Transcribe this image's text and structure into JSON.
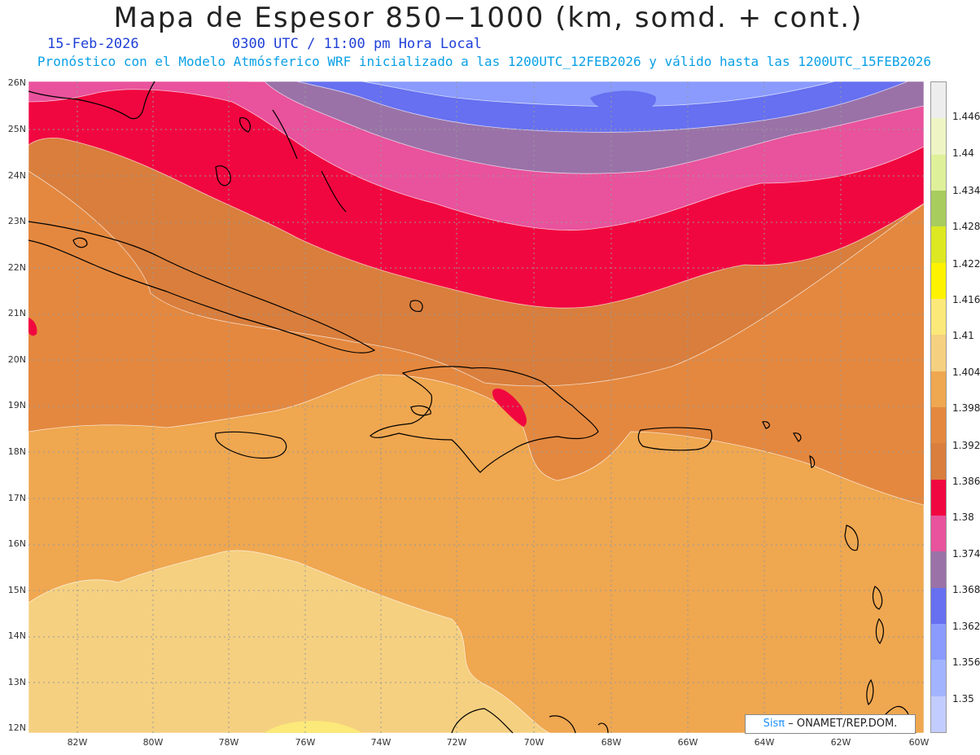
{
  "header": {
    "title": "Mapa de Espesor 850−1000 (km, somd. + cont.)",
    "date": "15-Feb-2026",
    "time": "0300 UTC / 11:00 pm Hora Local",
    "subtitle": "Pronóstico con el Modelo Atmósferico WRF inicializado a las 1200UTC_12FEB2026 y válido hasta las  1200UTC_15FEB2026"
  },
  "axes": {
    "lat_labels": [
      "26N",
      "25N",
      "24N",
      "23N",
      "22N",
      "21N",
      "20N",
      "19N",
      "18N",
      "17N",
      "16N",
      "15N",
      "14N",
      "13N",
      "12N"
    ],
    "lon_labels": [
      "82W",
      "80W",
      "78W",
      "76W",
      "74W",
      "72W",
      "70W",
      "68W",
      "66W",
      "64W",
      "62W",
      "60W"
    ],
    "lat_range": [
      12,
      26
    ],
    "lon_range": [
      -83.2,
      -60
    ]
  },
  "colorbar": {
    "labels": [
      "1.446",
      "1.44",
      "1.434",
      "1.428",
      "1.422",
      "1.416",
      "1.41",
      "1.404",
      "1.398",
      "1.392",
      "1.386",
      "1.38",
      "1.374",
      "1.368",
      "1.362",
      "1.356",
      "1.35"
    ],
    "colors": [
      "#ededed",
      "#eef4c3",
      "#dff09a",
      "#a8cc5e",
      "#dde822",
      "#fff200",
      "#fbe97a",
      "#f5d080",
      "#efa750",
      "#e4883f",
      "#d97e3c",
      "#f1073f",
      "#e9529c",
      "#9a72a8",
      "#6670f0",
      "#8a9bfd",
      "#a2b4fd",
      "#c3ccff"
    ]
  },
  "legend_colors": {
    "band_1362": "#6670f0",
    "band_1356": "#8a9bfd",
    "band_1368": "#9a72a8",
    "band_1374": "#e9529c",
    "band_1380": "#f1073f",
    "band_1386": "#d97e3c",
    "band_1392": "#e4883f",
    "band_1398": "#efa750",
    "band_1404": "#f5d080",
    "band_1410": "#fbe97a"
  },
  "credit": {
    "brand": "Sisπ",
    "org": "– ONAMET/REP.DOM."
  }
}
